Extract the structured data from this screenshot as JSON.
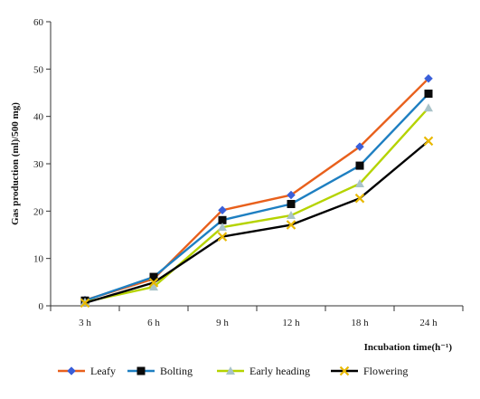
{
  "chart_data": {
    "type": "line",
    "title": "",
    "xlabel": "Incubation time(h⁻¹)",
    "ylabel": "Gas production (ml)/500 mg)",
    "ylim": [
      0,
      60
    ],
    "yticks": [
      "0",
      "10",
      "20",
      "30",
      "40",
      "50",
      "60"
    ],
    "categories": [
      "3 h",
      "6 h",
      "9 h",
      "12 h",
      "18 h",
      "24 h"
    ],
    "grid": false,
    "legend_position": "bottom",
    "series": [
      {
        "name": "Leafy",
        "values": [
          1.2,
          5.7,
          20.2,
          23.4,
          33.6,
          48.0
        ],
        "color": "#E8601C",
        "marker": "diamond",
        "marker_color": "#3A5FD9"
      },
      {
        "name": "Bolting",
        "values": [
          1.1,
          6.1,
          18.1,
          21.5,
          29.6,
          44.8
        ],
        "color": "#1E7FC1",
        "marker": "square",
        "marker_color": "#0a0a0a"
      },
      {
        "name": "Early heading",
        "values": [
          0.8,
          4.0,
          16.6,
          19.1,
          25.8,
          41.8
        ],
        "color": "#B5D300",
        "marker": "triangle",
        "marker_color": "#A9C3C9"
      },
      {
        "name": "Flowering",
        "values": [
          0.6,
          4.9,
          14.6,
          17.1,
          22.7,
          34.8
        ],
        "color": "#000000",
        "marker": "x",
        "marker_color": "#E8B800"
      }
    ]
  }
}
